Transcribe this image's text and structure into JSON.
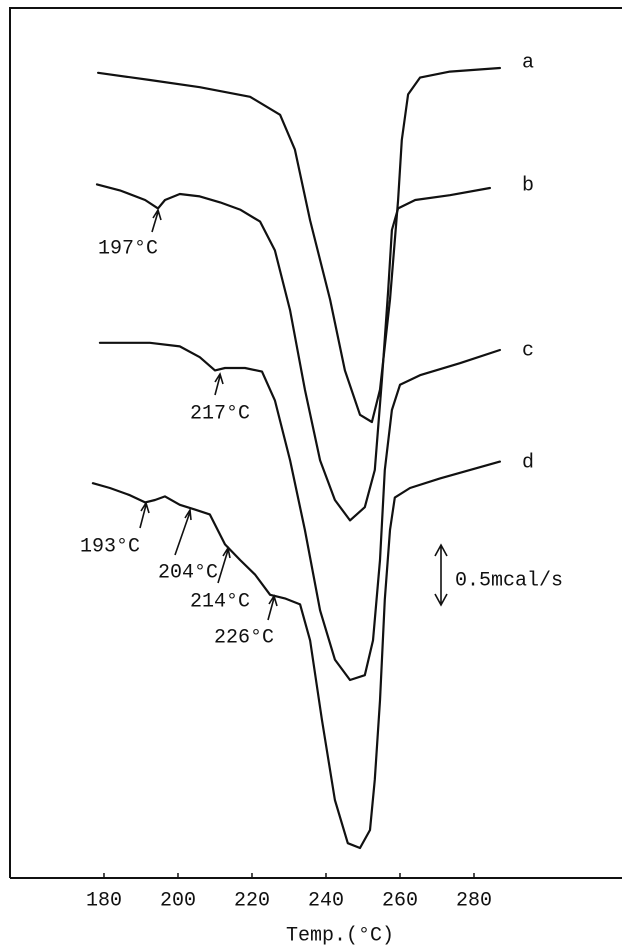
{
  "chart_data": {
    "type": "line",
    "x_label": "Temp.(°C)",
    "scale_label": "0.5mcal/s",
    "xlim": [
      154.6,
      320
    ],
    "ylim": [
      0,
      7.25
    ],
    "xticks": [
      180,
      200,
      220,
      240,
      260,
      280
    ],
    "annotations": [
      "197°C",
      "217°C",
      "193°C",
      "204°C",
      "214°C",
      "226°C"
    ],
    "series": [
      {
        "name": "a",
        "color": "#111111",
        "x": [
          178.4,
          192.4,
          205.9,
          219.5,
          227.6,
          231.6,
          235.7,
          241.1,
          245.1,
          249.2,
          252.4,
          254.6,
          257.3,
          259.5,
          260.5,
          262.2,
          265.4,
          273.5,
          287.0
        ],
        "values": [
          6.71,
          6.65,
          6.59,
          6.51,
          6.36,
          6.07,
          5.48,
          4.82,
          4.23,
          3.86,
          3.8,
          4.07,
          4.82,
          5.65,
          6.15,
          6.53,
          6.67,
          6.72,
          6.75
        ]
      },
      {
        "name": "b",
        "color": "#111111",
        "x": [
          178.1,
          184.3,
          191.1,
          194.6,
          196.5,
          200.5,
          205.9,
          211.4,
          216.8,
          222.2,
          226.2,
          230.3,
          234.3,
          238.4,
          242.4,
          246.5,
          250.5,
          253.2,
          255.1,
          256.8,
          257.8,
          259.5,
          264.1,
          273.5,
          284.3
        ],
        "values": [
          5.78,
          5.73,
          5.65,
          5.58,
          5.65,
          5.7,
          5.68,
          5.63,
          5.57,
          5.47,
          5.23,
          4.73,
          4.07,
          3.48,
          3.15,
          2.98,
          3.09,
          3.4,
          4.15,
          4.9,
          5.4,
          5.58,
          5.65,
          5.69,
          5.75
        ]
      },
      {
        "name": "c",
        "color": "#111111",
        "x": [
          178.9,
          192.4,
          200.5,
          205.9,
          210.0,
          212.7,
          218.1,
          222.7,
          226.2,
          230.3,
          234.3,
          238.4,
          242.4,
          246.5,
          250.5,
          252.7,
          254.6,
          255.9,
          257.8,
          260.0,
          265.4,
          276.2,
          287.0
        ],
        "values": [
          4.46,
          4.46,
          4.43,
          4.34,
          4.23,
          4.25,
          4.25,
          4.22,
          3.98,
          3.48,
          2.9,
          2.23,
          1.82,
          1.65,
          1.69,
          1.98,
          2.65,
          3.4,
          3.9,
          4.11,
          4.19,
          4.29,
          4.4
        ]
      },
      {
        "name": "d",
        "color": "#111111",
        "x": [
          177.0,
          181.6,
          187.0,
          191.1,
          193.8,
          196.5,
          200.5,
          204.6,
          208.6,
          212.7,
          216.8,
          220.8,
          224.9,
          228.9,
          233.0,
          235.7,
          238.9,
          242.4,
          245.9,
          249.2,
          251.9,
          253.2,
          254.6,
          255.9,
          257.3,
          258.6,
          262.7,
          270.8,
          287.0
        ],
        "values": [
          3.29,
          3.25,
          3.19,
          3.13,
          3.15,
          3.18,
          3.11,
          3.07,
          3.03,
          2.78,
          2.65,
          2.53,
          2.36,
          2.33,
          2.28,
          1.98,
          1.32,
          0.65,
          0.29,
          0.25,
          0.4,
          0.82,
          1.48,
          2.32,
          2.9,
          3.17,
          3.25,
          3.33,
          3.47
        ]
      }
    ]
  }
}
